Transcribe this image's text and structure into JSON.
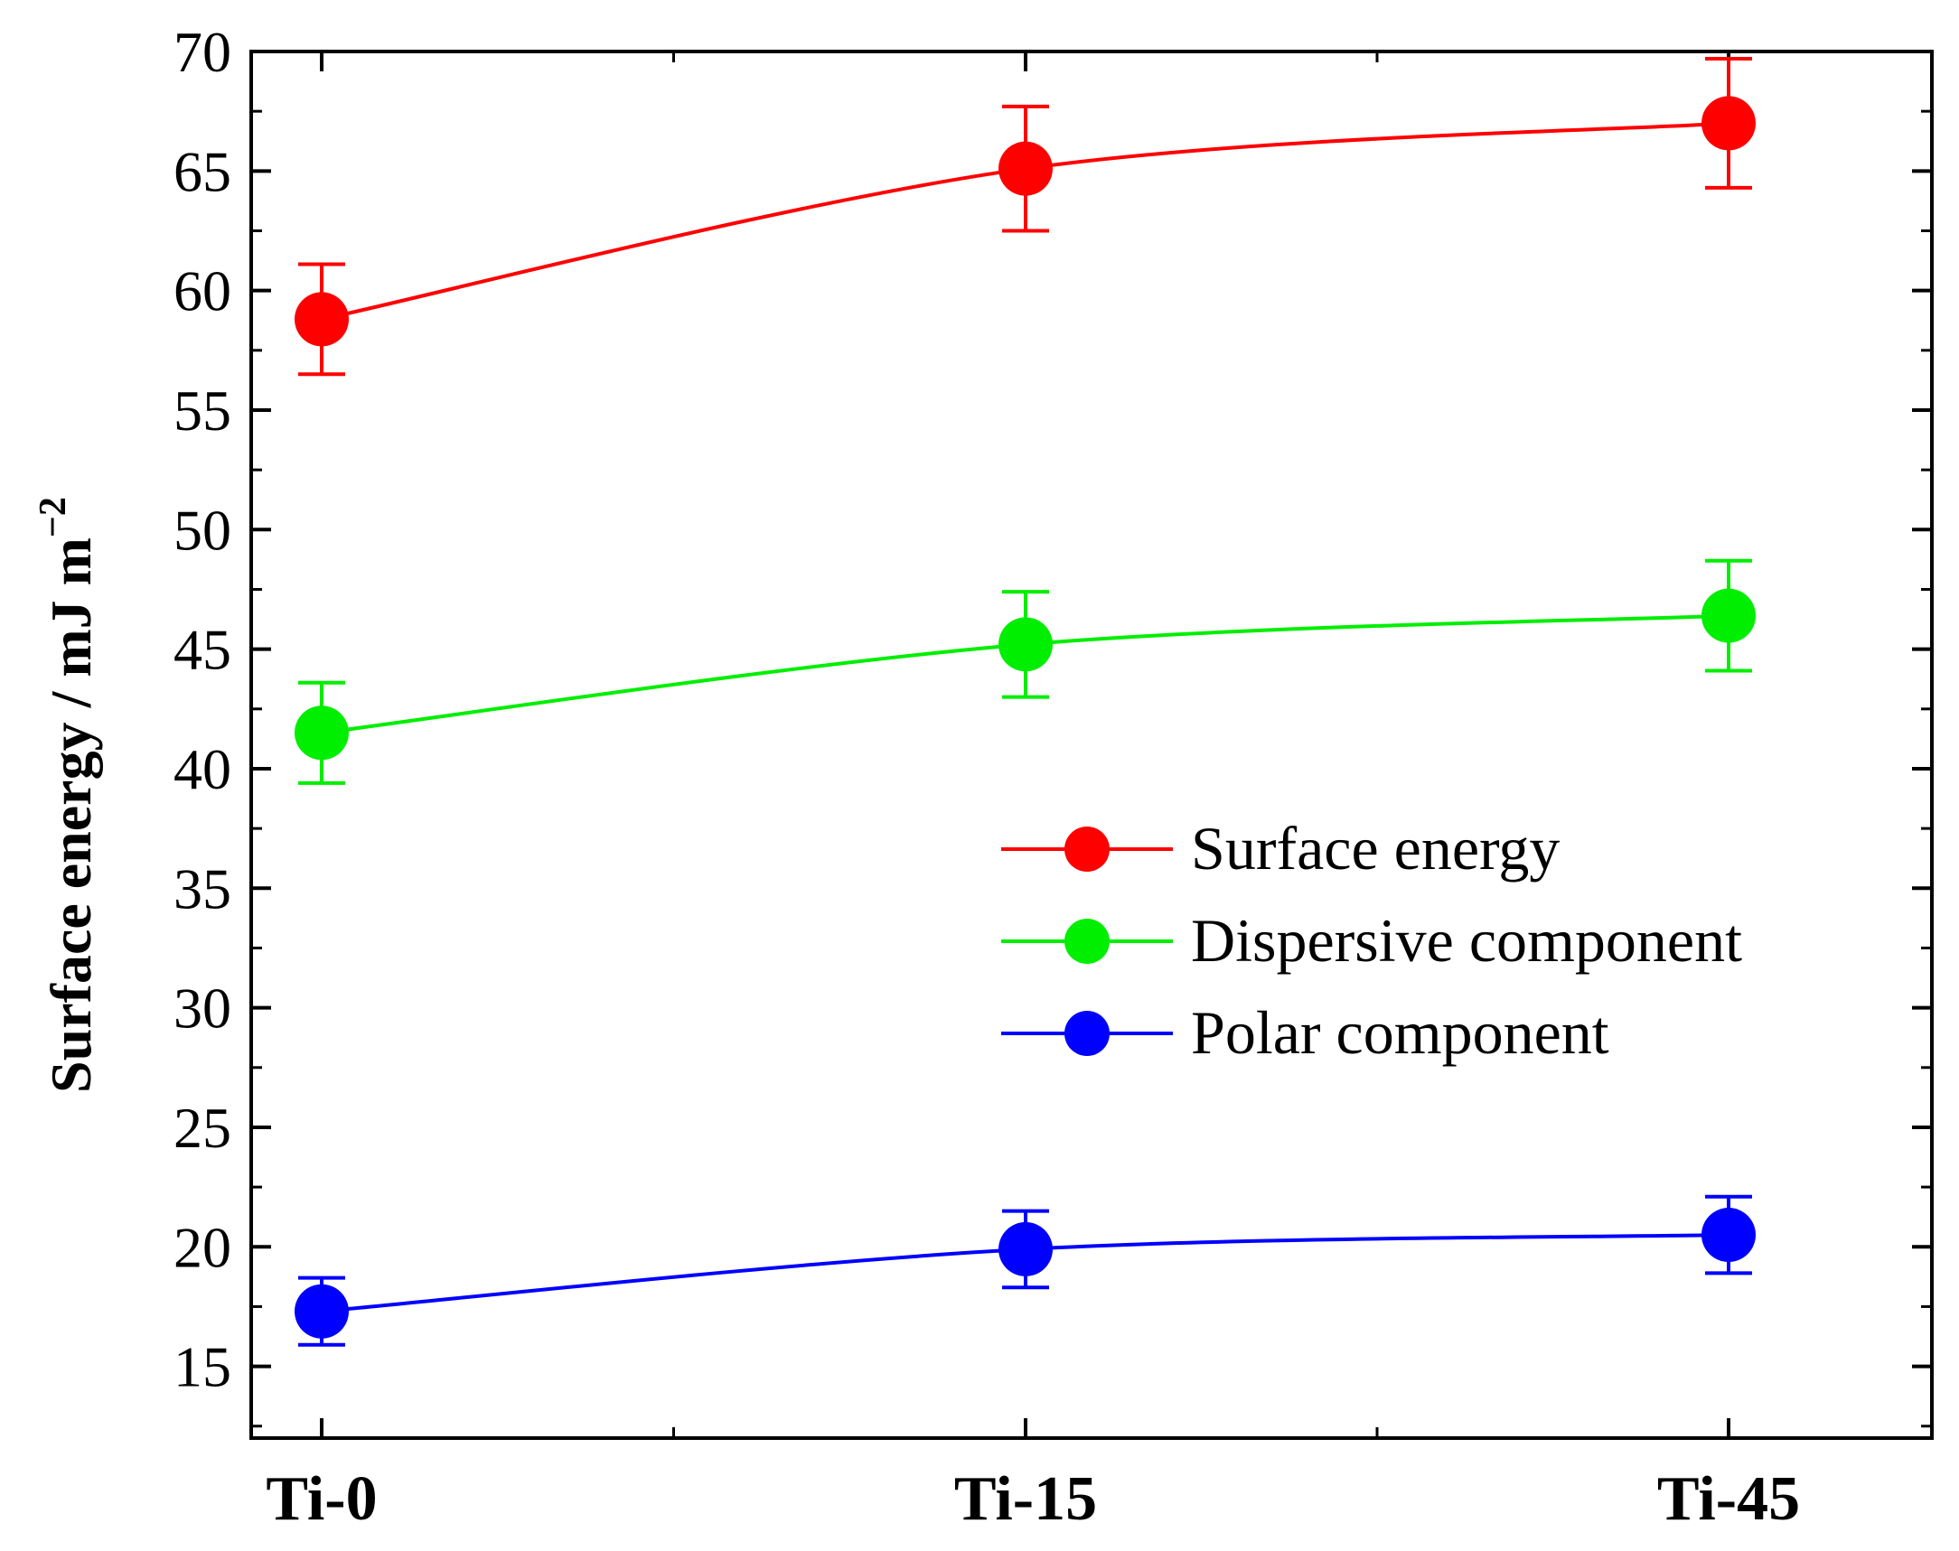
{
  "chart_data": {
    "type": "line",
    "title": "",
    "xlabel": "",
    "ylabel": "Surface energy / mJ m",
    "ylabel_superscript": "−2",
    "categories": [
      "Ti-0",
      "Ti-15",
      "Ti-45"
    ],
    "ylim": [
      12,
      70
    ],
    "yticks": [
      15,
      20,
      25,
      30,
      35,
      40,
      45,
      50,
      55,
      60,
      65,
      70
    ],
    "ytick_labels": [
      "15",
      "20",
      "25",
      "30",
      "35",
      "40",
      "45",
      "50",
      "55",
      "60",
      "65",
      "70"
    ],
    "grid": false,
    "legend_position": "center-right",
    "series": [
      {
        "name": "Surface energy",
        "color": "#ff0000",
        "values": [
          58.8,
          65.1,
          67.0
        ],
        "errors": [
          2.3,
          2.6,
          2.7
        ]
      },
      {
        "name": "Dispersive component",
        "color": "#00ee00",
        "values": [
          41.5,
          45.2,
          46.4
        ],
        "errors": [
          2.1,
          2.2,
          2.3
        ]
      },
      {
        "name": "Polar component",
        "color": "#0000ff",
        "values": [
          17.3,
          19.9,
          20.5
        ],
        "errors": [
          1.4,
          1.6,
          1.6
        ]
      }
    ]
  }
}
